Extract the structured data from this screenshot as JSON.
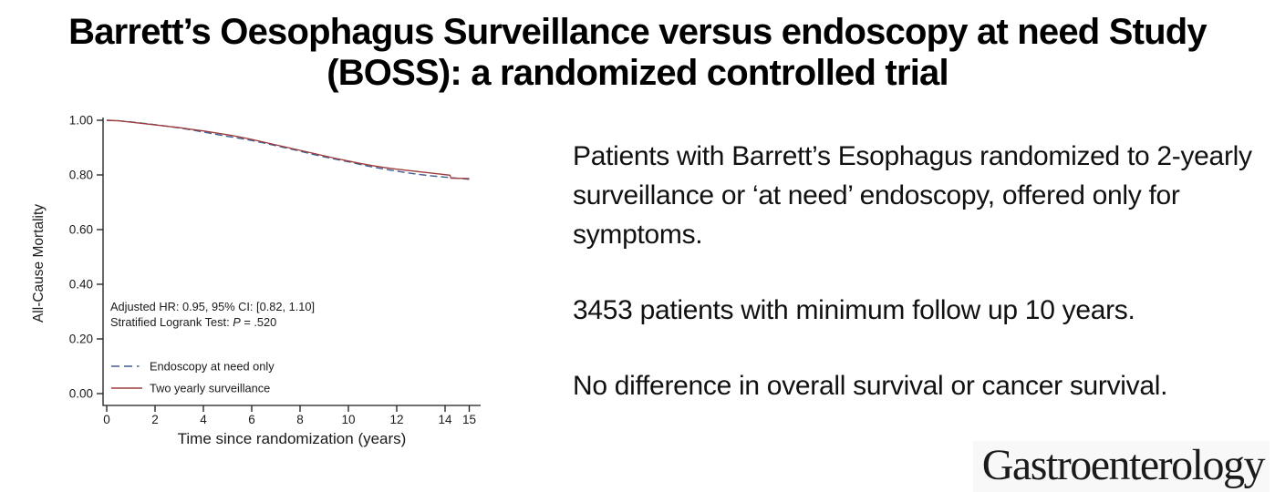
{
  "title": {
    "line1": "Barrett’s Oesophagus Surveillance versus endoscopy at need Study",
    "line2": "(BOSS): a randomized controlled trial"
  },
  "summary": {
    "paragraphs": [
      "Patients with Barrett’s Esophagus randomized to 2-yearly surveillance or ‘at need’ endoscopy, offered only for symptoms.",
      "3453 patients with minimum follow up 10 years.",
      "No difference in overall survival or cancer survival."
    ]
  },
  "journal": {
    "name": "Gastroenterology"
  },
  "chart_data": {
    "type": "line",
    "subtype": "kaplan-meier-survival",
    "xlabel": "Time since randomization (years)",
    "ylabel": "All-Cause Mortality",
    "xlim": [
      0,
      15
    ],
    "ylim": [
      0.0,
      1.0
    ],
    "grid": false,
    "legend_position": "inside-bottom-left",
    "axis_color": "#1a1a1a",
    "text_color": "#1a1a1a",
    "xticks": [
      {
        "value": 0,
        "label": "0"
      },
      {
        "value": 2,
        "label": "2"
      },
      {
        "value": 4,
        "label": "4"
      },
      {
        "value": 6,
        "label": "6"
      },
      {
        "value": 8,
        "label": "8"
      },
      {
        "value": 10,
        "label": "10"
      },
      {
        "value": 12,
        "label": "12"
      },
      {
        "value": 14,
        "label": "14"
      },
      {
        "value": 15,
        "label": "15"
      }
    ],
    "yticks": [
      {
        "value": 0.0,
        "label": "0.00"
      },
      {
        "value": 0.2,
        "label": "0.20"
      },
      {
        "value": 0.4,
        "label": "0.40"
      },
      {
        "value": 0.6,
        "label": "0.60"
      },
      {
        "value": 0.8,
        "label": "0.80"
      },
      {
        "value": 1.0,
        "label": "1.00"
      }
    ],
    "annotation": {
      "line1": "Adjusted HR: 0.95, 95% CI: [0.82, 1.10]",
      "line2_pre": "Stratified Logrank Test: ",
      "line2_italic": "P",
      "line2_post": " = .520"
    },
    "series": [
      {
        "name": "Endoscopy at need only",
        "color": "#3c5f94",
        "style": "dashed",
        "x": [
          0,
          0.5,
          1,
          1.5,
          2,
          2.5,
          3,
          3.5,
          4,
          4.5,
          5,
          5.5,
          6,
          6.5,
          7,
          7.5,
          8,
          8.5,
          9,
          9.5,
          10,
          10.5,
          11,
          11.5,
          12,
          12.5,
          13,
          13.5,
          14,
          14.5,
          15
        ],
        "y": [
          1.0,
          0.998,
          0.994,
          0.989,
          0.984,
          0.978,
          0.972,
          0.965,
          0.957,
          0.949,
          0.941,
          0.934,
          0.926,
          0.917,
          0.907,
          0.897,
          0.887,
          0.876,
          0.866,
          0.857,
          0.848,
          0.838,
          0.829,
          0.821,
          0.814,
          0.807,
          0.801,
          0.796,
          0.792,
          0.788,
          0.784
        ]
      },
      {
        "name": "Two yearly surveillance",
        "color": "#9e3c3c",
        "style": "solid",
        "x": [
          0,
          0.5,
          1,
          1.5,
          2,
          2.5,
          3,
          3.5,
          4,
          4.5,
          5,
          5.5,
          6,
          6.5,
          7,
          7.5,
          8,
          8.5,
          9,
          9.5,
          10,
          10.5,
          11,
          11.5,
          12,
          12.5,
          13,
          13.5,
          14,
          14.2,
          14.25,
          15
        ],
        "y": [
          1.0,
          0.998,
          0.993,
          0.988,
          0.983,
          0.978,
          0.973,
          0.967,
          0.961,
          0.954,
          0.947,
          0.939,
          0.93,
          0.92,
          0.91,
          0.9,
          0.89,
          0.88,
          0.87,
          0.86,
          0.851,
          0.842,
          0.834,
          0.827,
          0.821,
          0.816,
          0.811,
          0.806,
          0.801,
          0.799,
          0.788,
          0.787
        ]
      }
    ]
  }
}
